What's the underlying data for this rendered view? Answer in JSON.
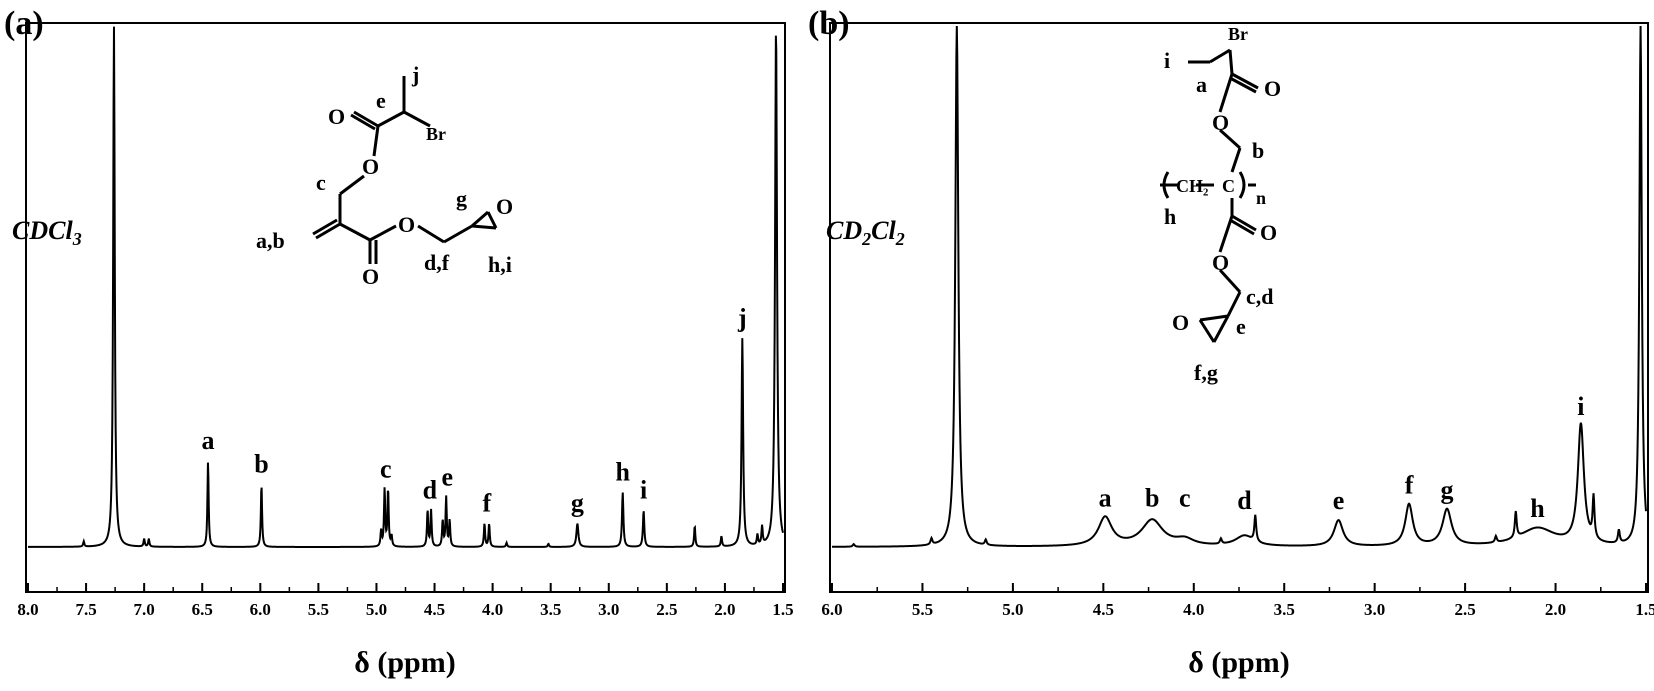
{
  "chart_data": [
    {
      "type": "line",
      "panel_label": "(a)",
      "solvent": "CDCl3",
      "xlabel": "δ (ppm)",
      "xlim": [
        8.0,
        1.5
      ],
      "x_reversed": true,
      "x_ticks": [
        "8.0",
        "7.5",
        "7.0",
        "6.5",
        "6.0",
        "5.5",
        "5.0",
        "4.5",
        "4.0",
        "3.5",
        "3.0",
        "2.5",
        "2.0",
        "1.5"
      ],
      "series": [
        {
          "peaks": [
            {
              "ppm": 7.52,
              "height": 0.01
            },
            {
              "ppm": 7.26,
              "height": 1.0,
              "width": 0.008
            },
            {
              "ppm": 7.0,
              "height": 0.015
            },
            {
              "ppm": 6.96,
              "height": 0.015
            },
            {
              "ppm": 6.45,
              "height": 0.165,
              "width": 0.006
            },
            {
              "ppm": 5.99,
              "height": 0.12,
              "width": 0.006
            },
            {
              "ppm": 4.96,
              "height": 0.03
            },
            {
              "ppm": 4.93,
              "height": 0.11
            },
            {
              "ppm": 4.9,
              "height": 0.11
            },
            {
              "ppm": 4.87,
              "height": 0.02
            },
            {
              "ppm": 4.56,
              "height": 0.07
            },
            {
              "ppm": 4.53,
              "height": 0.07
            },
            {
              "ppm": 4.43,
              "height": 0.05
            },
            {
              "ppm": 4.4,
              "height": 0.095
            },
            {
              "ppm": 4.37,
              "height": 0.05
            },
            {
              "ppm": 4.07,
              "height": 0.045
            },
            {
              "ppm": 4.03,
              "height": 0.045
            },
            {
              "ppm": 3.88,
              "height": 0.008
            },
            {
              "ppm": 3.52,
              "height": 0.006
            },
            {
              "ppm": 3.27,
              "height": 0.045,
              "width": 0.01
            },
            {
              "ppm": 2.88,
              "height": 0.105,
              "width": 0.007
            },
            {
              "ppm": 2.7,
              "height": 0.07,
              "width": 0.007
            },
            {
              "ppm": 2.26,
              "height": 0.04
            },
            {
              "ppm": 2.03,
              "height": 0.02
            },
            {
              "ppm": 1.85,
              "height": 0.4,
              "width": 0.008
            },
            {
              "ppm": 1.72,
              "height": 0.02
            },
            {
              "ppm": 1.68,
              "height": 0.035
            },
            {
              "ppm": 1.56,
              "height": 1.0,
              "width": 0.01
            }
          ]
        }
      ],
      "annotations": [
        {
          "text": "a",
          "ppm": 6.45,
          "height": 0.165
        },
        {
          "text": "b",
          "ppm": 5.99,
          "height": 0.12
        },
        {
          "text": "c",
          "ppm": 4.92,
          "height": 0.11
        },
        {
          "text": "d",
          "ppm": 4.54,
          "height": 0.07
        },
        {
          "text": "e",
          "ppm": 4.39,
          "height": 0.095
        },
        {
          "text": "f",
          "ppm": 4.05,
          "height": 0.045
        },
        {
          "text": "g",
          "ppm": 3.27,
          "height": 0.045
        },
        {
          "text": "h",
          "ppm": 2.88,
          "height": 0.105
        },
        {
          "text": "i",
          "ppm": 2.7,
          "height": 0.07
        },
        {
          "text": "j",
          "ppm": 1.85,
          "height": 0.4
        }
      ]
    },
    {
      "type": "line",
      "panel_label": "(b)",
      "solvent": "CD2Cl2",
      "xlabel": "δ (ppm)",
      "xlim": [
        6.0,
        1.5
      ],
      "x_reversed": true,
      "x_ticks": [
        "6.0",
        "5.5",
        "5.0",
        "4.5",
        "4.0",
        "3.5",
        "3.0",
        "2.5",
        "2.0",
        "1.5"
      ],
      "series": [
        {
          "peaks": [
            {
              "ppm": 5.88,
              "height": 0.005
            },
            {
              "ppm": 5.45,
              "height": 0.012
            },
            {
              "ppm": 5.31,
              "height": 1.0,
              "width": 0.01
            },
            {
              "ppm": 5.15,
              "height": 0.01
            },
            {
              "ppm": 4.49,
              "height": 0.055,
              "width": 0.045
            },
            {
              "ppm": 4.23,
              "height": 0.05,
              "width": 0.07
            },
            {
              "ppm": 4.05,
              "height": 0.012,
              "width": 0.06
            },
            {
              "ppm": 3.85,
              "height": 0.01
            },
            {
              "ppm": 3.72,
              "height": 0.02,
              "width": 0.06
            },
            {
              "ppm": 3.66,
              "height": 0.05,
              "width": 0.006
            },
            {
              "ppm": 3.2,
              "height": 0.05,
              "width": 0.03
            },
            {
              "ppm": 2.81,
              "height": 0.08,
              "width": 0.025
            },
            {
              "ppm": 2.6,
              "height": 0.07,
              "width": 0.03
            },
            {
              "ppm": 2.33,
              "height": 0.012
            },
            {
              "ppm": 2.22,
              "height": 0.05,
              "width": 0.006
            },
            {
              "ppm": 2.1,
              "height": 0.035,
              "width": 0.12
            },
            {
              "ppm": 1.86,
              "height": 0.23,
              "width": 0.02
            },
            {
              "ppm": 1.79,
              "height": 0.08,
              "width": 0.006
            },
            {
              "ppm": 1.65,
              "height": 0.025
            },
            {
              "ppm": 1.53,
              "height": 1.0,
              "width": 0.008
            }
          ]
        }
      ],
      "annotations": [
        {
          "text": "a",
          "ppm": 4.49,
          "height": 0.055
        },
        {
          "text": "b",
          "ppm": 4.23,
          "height": 0.055
        },
        {
          "text": "c",
          "ppm": 4.05,
          "height": 0.055
        },
        {
          "text": "d",
          "ppm": 3.72,
          "height": 0.05
        },
        {
          "text": "e",
          "ppm": 3.2,
          "height": 0.05
        },
        {
          "text": "f",
          "ppm": 2.81,
          "height": 0.08
        },
        {
          "text": "g",
          "ppm": 2.6,
          "height": 0.07
        },
        {
          "text": "h",
          "ppm": 2.1,
          "height": 0.035
        },
        {
          "text": "i",
          "ppm": 1.86,
          "height": 0.23
        }
      ]
    }
  ],
  "structures": {
    "a": {
      "labels": [
        "j",
        "e",
        "Br",
        "O",
        "O",
        "c",
        "g",
        "O",
        "a,b",
        "O",
        "d,f",
        "h,i",
        "O"
      ]
    },
    "b": {
      "labels": [
        "Br",
        "i",
        "a",
        "O",
        "O",
        "b",
        "CH₂",
        "C",
        "n",
        "h",
        "O",
        "O",
        "c,d",
        "O",
        "e",
        "f,g"
      ]
    }
  }
}
